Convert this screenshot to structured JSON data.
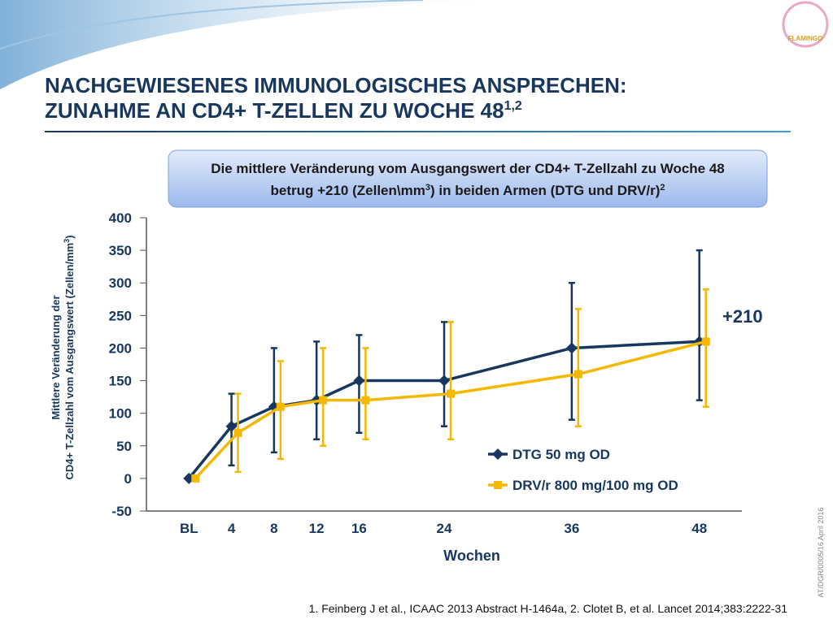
{
  "slide": {
    "logo": "FLAMINGO",
    "title_line1": "NACHGEWIESENES IMMUNOLOGISCHES ANSPRECHEN:",
    "title_line2": "ZUNAHME AN CD4+ T-ZELLEN ZU WOCHE 48",
    "title_sup": "1,2",
    "callout_line1": "Die mittlere Veränderung vom Ausgangswert der CD4+ T-Zellzahl zu Woche 48",
    "callout_line2a": "betrug +210 (Zellen\\mm",
    "callout_sup1": "3",
    "callout_line2b": ") in beiden Armen (DTG und DRV/r)",
    "callout_sup2": "2",
    "reference": "1. Feinberg J et al., ICAAC 2013 Abstract H-1464a, 2. Clotet B, et al. Lancet 2014;383:2222-31",
    "side_code": "AT/DGR/0005/16  April 2016"
  },
  "chart_data": {
    "type": "line",
    "x_label": "Wochen",
    "y_label_line1": "Mittlere Veränderung der",
    "y_label_line2a": "CD4+ T-Zellzahl vom Ausgangswert (Zellen/mm",
    "y_label_sup": "3",
    "y_label_line2b": ")",
    "annotation": "+210",
    "x": [
      0,
      4,
      8,
      12,
      16,
      24,
      36,
      48
    ],
    "xlim": [
      -4,
      52
    ],
    "xticks": [
      {
        "value": 0,
        "label": "BL"
      },
      4,
      8,
      12,
      16,
      24,
      36,
      48
    ],
    "ylim": [
      -50,
      400
    ],
    "yticks": [
      -50,
      0,
      50,
      100,
      150,
      200,
      250,
      300,
      350,
      400
    ],
    "legend": "lower right",
    "series": [
      {
        "name": "DTG 50 mg OD",
        "color": "#17375e",
        "marker": "diamond",
        "values": [
          0,
          80,
          110,
          120,
          150,
          150,
          200,
          210
        ],
        "err_low": [
          null,
          20,
          40,
          60,
          70,
          80,
          90,
          120
        ],
        "err_high": [
          null,
          130,
          200,
          210,
          220,
          240,
          300,
          350
        ]
      },
      {
        "name": "DRV/r 800 mg/100 mg OD",
        "color": "#f5b800",
        "marker": "square",
        "values": [
          0,
          70,
          110,
          120,
          120,
          130,
          160,
          210
        ],
        "err_low": [
          null,
          10,
          30,
          50,
          60,
          60,
          80,
          110
        ],
        "err_high": [
          null,
          130,
          180,
          200,
          200,
          240,
          260,
          290
        ]
      }
    ]
  }
}
